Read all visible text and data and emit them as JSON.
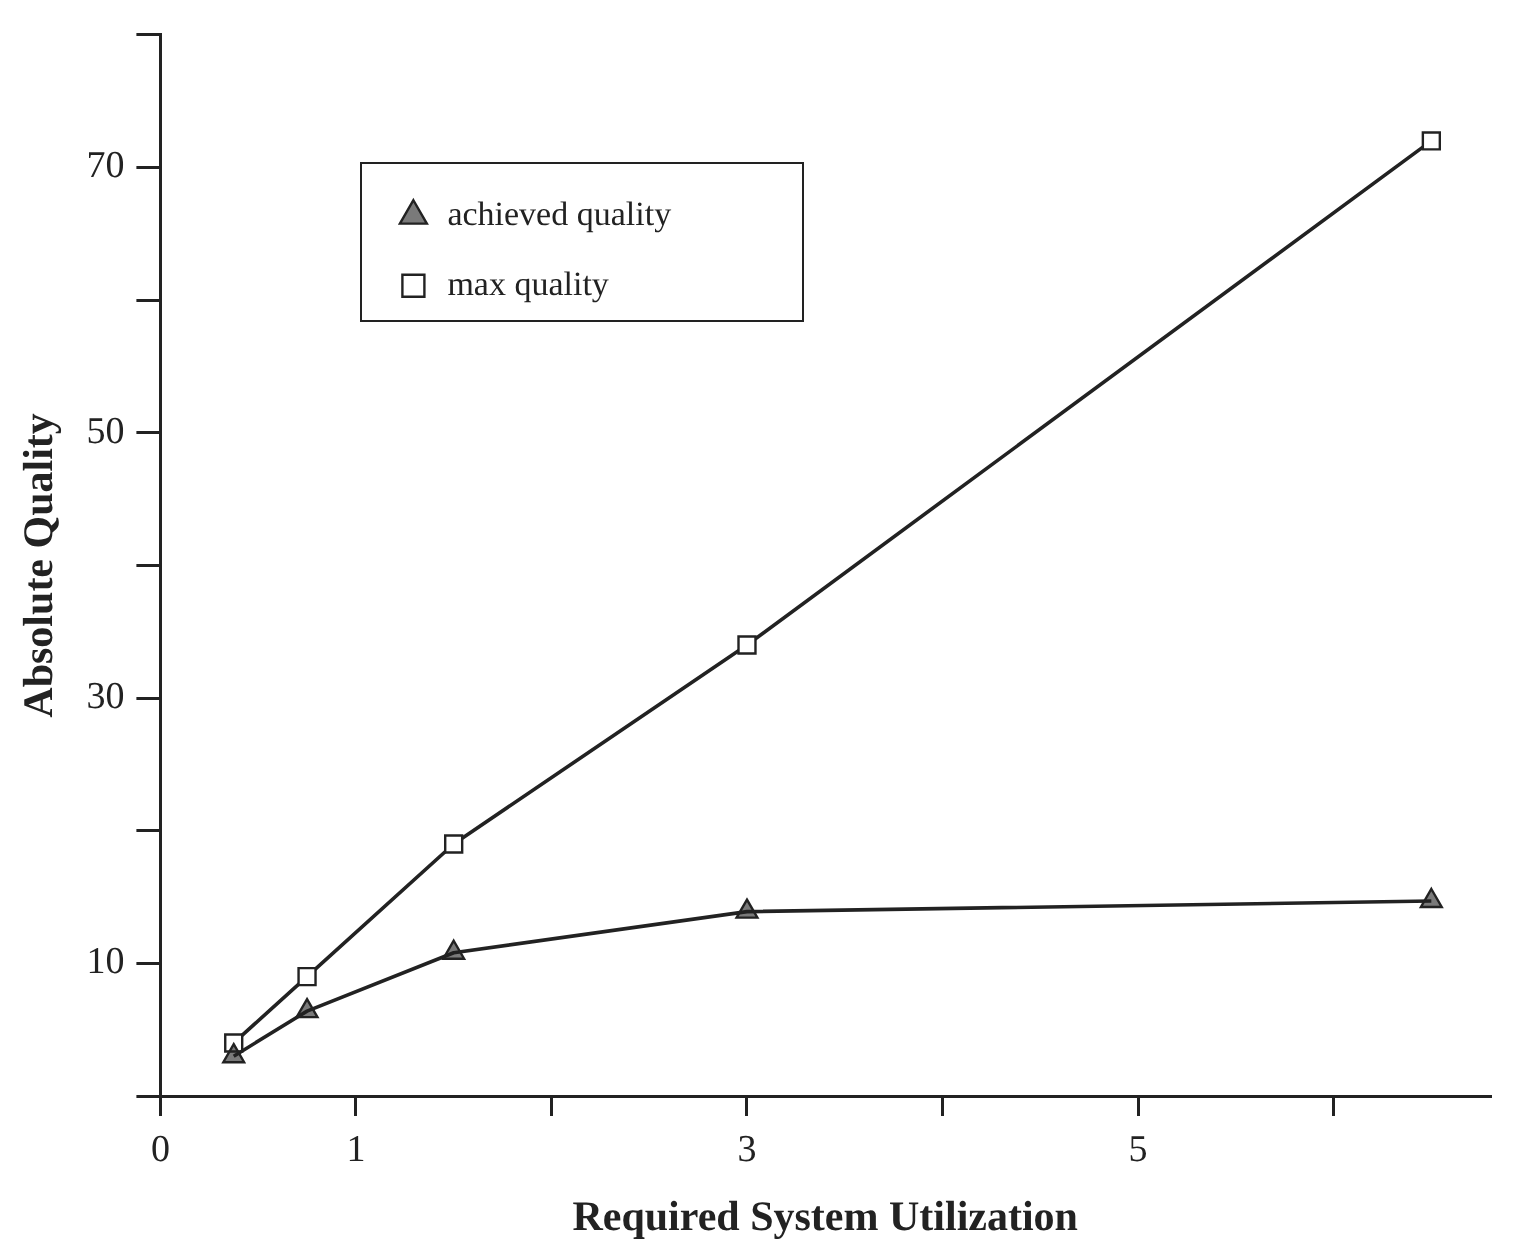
{
  "chart_data": {
    "type": "line",
    "xlabel": "Required System Utilization",
    "ylabel": "Absolute Quality",
    "x": [
      0.375,
      0.75,
      1.5,
      3,
      6.5
    ],
    "series": [
      {
        "name": "achieved quality",
        "color": "#222222",
        "marker": "triangle",
        "values": [
          3,
          6.4,
          10.8,
          13.9,
          14.7
        ]
      },
      {
        "name": "max quality",
        "color": "#222222",
        "marker": "square",
        "values": [
          4,
          9,
          19,
          34,
          72
        ]
      }
    ],
    "xlim": [
      0,
      6.8
    ],
    "xticks": [
      0,
      1,
      {
        "value": 2,
        "label": null
      },
      3,
      {
        "value": 4,
        "label": null
      },
      5,
      {
        "value": 6,
        "label": null
      }
    ],
    "ylim": [
      0,
      80
    ],
    "yticks": [
      {
        "value": 0,
        "label": null
      },
      10,
      {
        "value": 20,
        "label": null
      },
      30,
      {
        "value": 40,
        "label": null
      },
      50,
      {
        "value": 60,
        "label": null
      },
      70,
      {
        "value": 80,
        "label": null
      }
    ],
    "grid": false,
    "legend": "top left",
    "line_style": "solid"
  }
}
